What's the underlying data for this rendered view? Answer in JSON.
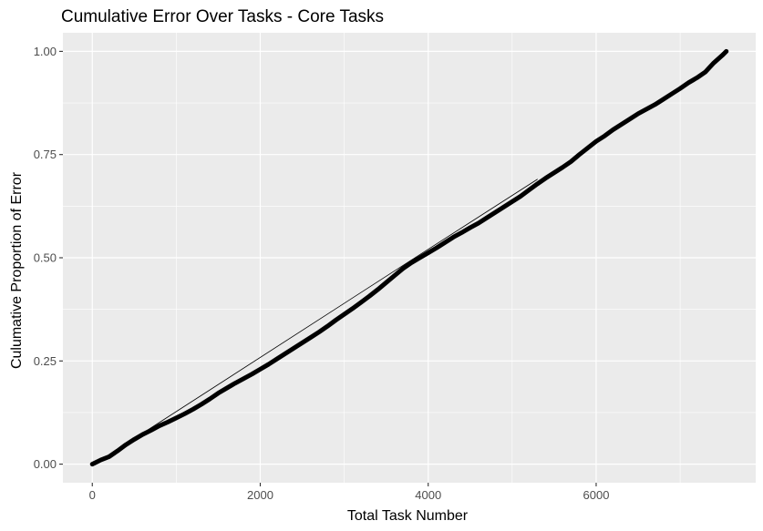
{
  "chart_data": {
    "type": "line",
    "title": "Cumulative Error Over Tasks - Core Tasks",
    "xlabel": "Total Task Number",
    "ylabel": "Culumative Proportion of Error",
    "xlim": [
      -350,
      7900
    ],
    "ylim": [
      -0.045,
      1.045
    ],
    "x_ticks": [
      0,
      2000,
      4000,
      6000
    ],
    "x_tick_labels": [
      "0",
      "2000",
      "4000",
      "6000"
    ],
    "x_minor_ticks": [
      1000,
      3000,
      5000,
      7000
    ],
    "y_ticks": [
      0,
      0.25,
      0.5,
      0.75,
      1.0
    ],
    "y_tick_labels": [
      "0.00",
      "0.25",
      "0.50",
      "0.75",
      "1.00"
    ],
    "grid": true,
    "legend": "none",
    "colors": {
      "panel": "#ebebeb",
      "grid": "#ffffff",
      "line": "#000000"
    },
    "series": [
      {
        "style": "thick",
        "x": [
          0,
          100,
          200,
          300,
          400,
          500,
          600,
          700,
          800,
          900,
          1000,
          1100,
          1200,
          1300,
          1400,
          1500,
          1600,
          1700,
          1800,
          1900,
          2000,
          2100,
          2200,
          2300,
          2400,
          2500,
          2600,
          2700,
          2800,
          2900,
          3000,
          3100,
          3200,
          3300,
          3400,
          3500,
          3600,
          3700,
          3800,
          3900,
          4000,
          4100,
          4200,
          4300,
          4400,
          4500,
          4600,
          4700,
          4800,
          4900,
          5000,
          5100,
          5200,
          5300,
          5400,
          5500,
          5600,
          5700,
          5800,
          5900,
          6000,
          6100,
          6200,
          6300,
          6400,
          6500,
          6600,
          6700,
          6800,
          6900,
          7000,
          7100,
          7200,
          7300,
          7400,
          7500,
          7550
        ],
        "y": [
          0.0,
          0.01,
          0.018,
          0.032,
          0.047,
          0.06,
          0.072,
          0.082,
          0.093,
          0.102,
          0.112,
          0.122,
          0.133,
          0.145,
          0.158,
          0.172,
          0.184,
          0.196,
          0.207,
          0.218,
          0.23,
          0.242,
          0.255,
          0.268,
          0.281,
          0.294,
          0.307,
          0.32,
          0.334,
          0.349,
          0.363,
          0.377,
          0.392,
          0.407,
          0.423,
          0.44,
          0.457,
          0.474,
          0.488,
          0.5,
          0.512,
          0.524,
          0.537,
          0.55,
          0.561,
          0.573,
          0.584,
          0.597,
          0.61,
          0.623,
          0.636,
          0.649,
          0.664,
          0.679,
          0.693,
          0.706,
          0.719,
          0.733,
          0.75,
          0.766,
          0.782,
          0.795,
          0.81,
          0.823,
          0.836,
          0.849,
          0.86,
          0.871,
          0.884,
          0.897,
          0.91,
          0.924,
          0.936,
          0.95,
          0.972,
          0.99,
          1.0
        ]
      },
      {
        "style": "thin",
        "x": [
          600,
          3750,
          5300
        ],
        "y": [
          0.075,
          0.488,
          0.69
        ]
      }
    ]
  }
}
